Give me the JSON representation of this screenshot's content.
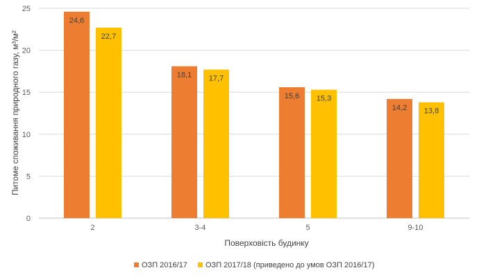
{
  "chart_data": {
    "type": "bar",
    "categories": [
      "2",
      "3-4",
      "5",
      "9-10"
    ],
    "series": [
      {
        "name": "ОЗП 2016/17",
        "color": "#ED7D31",
        "values": [
          24.6,
          18.1,
          15.6,
          14.2
        ],
        "labels": [
          "24,6",
          "18,1",
          "15,6",
          "14,2"
        ]
      },
      {
        "name": "ОЗП 2017/18 (приведено до умов ОЗП 2016/17)",
        "color": "#FFC000",
        "values": [
          22.7,
          17.7,
          15.3,
          13.8
        ],
        "labels": [
          "22,7",
          "17,7",
          "15,3",
          "13,8"
        ]
      }
    ],
    "xlabel": "Поверховість будинку",
    "ylabel": "Питоме споживання природного газу, м³/м²",
    "ylim": [
      0,
      25
    ],
    "yticks": [
      0,
      5,
      10,
      15,
      20,
      25
    ],
    "grid": true,
    "legend": "bottom"
  }
}
